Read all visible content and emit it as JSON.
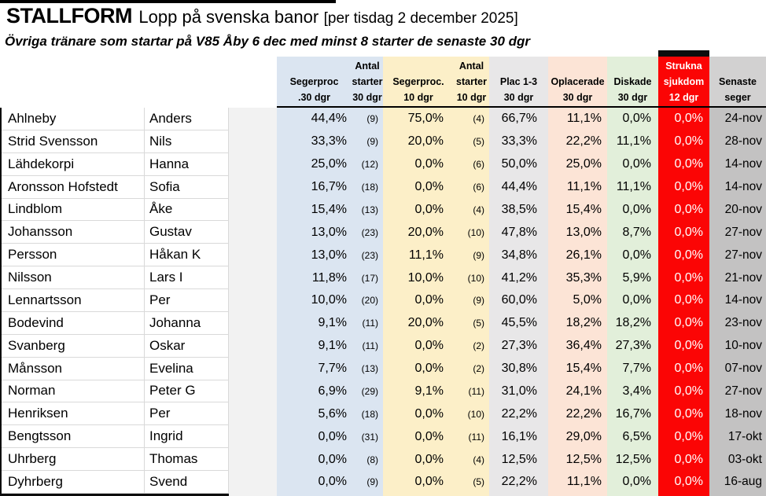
{
  "title": {
    "brand": "STALLFORM",
    "text": "Lopp på svenska banor",
    "date": "[per tisdag 2 december 2025]"
  },
  "subtitle": "Övriga tränare som startar på V85 Åby 6 dec med minst 8 starter de senaste 30 dgr",
  "colors": {
    "blue": "#dbe5f1",
    "yellow": "#fcefc8",
    "plac": "#e8e7e8",
    "oplacerade": "#fce4d6",
    "diskade": "#e2efda",
    "strukna": "#fb0505",
    "senaste_header": "#d2d1d1",
    "senaste_data": "#c3c2c2",
    "spacer": "#f2f2f2"
  },
  "columns": [
    {
      "id": "last_name",
      "lines": [
        "",
        "",
        ""
      ]
    },
    {
      "id": "first_name",
      "lines": [
        "",
        "",
        ""
      ]
    },
    {
      "id": "spacer",
      "lines": [
        "",
        "",
        ""
      ]
    },
    {
      "id": "segerproc_30",
      "lines": [
        "",
        "Segerproc",
        ".30 dgr"
      ]
    },
    {
      "id": "antal_starter_30",
      "lines": [
        "Antal",
        "starter",
        "30 dgr"
      ]
    },
    {
      "id": "segerproc_10",
      "lines": [
        "",
        "Segerproc.",
        "10 dgr"
      ]
    },
    {
      "id": "antal_starter_10",
      "lines": [
        "Antal",
        "starter",
        "10 dgr"
      ]
    },
    {
      "id": "plac_1_3",
      "lines": [
        "",
        "Plac 1-3",
        "30 dgr"
      ]
    },
    {
      "id": "oplacerade",
      "lines": [
        "",
        "Oplacerade",
        "30 dgr"
      ]
    },
    {
      "id": "diskade",
      "lines": [
        "",
        "Diskade",
        "30 dgr"
      ]
    },
    {
      "id": "strukna_sjukdom",
      "lines": [
        "Strukna",
        "sjukdom",
        "12 dgr"
      ]
    },
    {
      "id": "senaste_seger",
      "lines": [
        "",
        "Senaste",
        "seger"
      ]
    }
  ],
  "rows": [
    {
      "last": "Ahlneby",
      "first": "Anders",
      "s30": "44,4%",
      "n30": "(9)",
      "s10": "75,0%",
      "n10": "(4)",
      "p13": "66,7%",
      "opl": "11,1%",
      "dsk": "0,0%",
      "str": "0,0%",
      "sen": "24-nov"
    },
    {
      "last": "Strid Svensson",
      "first": "Nils",
      "s30": "33,3%",
      "n30": "(9)",
      "s10": "20,0%",
      "n10": "(5)",
      "p13": "33,3%",
      "opl": "22,2%",
      "dsk": "11,1%",
      "str": "0,0%",
      "sen": "28-nov"
    },
    {
      "last": "Lähdekorpi",
      "first": "Hanna",
      "s30": "25,0%",
      "n30": "(12)",
      "s10": "0,0%",
      "n10": "(6)",
      "p13": "50,0%",
      "opl": "25,0%",
      "dsk": "0,0%",
      "str": "0,0%",
      "sen": "14-nov"
    },
    {
      "last": "Aronsson Hofstedt",
      "first": "Sofia",
      "s30": "16,7%",
      "n30": "(18)",
      "s10": "0,0%",
      "n10": "(6)",
      "p13": "44,4%",
      "opl": "11,1%",
      "dsk": "11,1%",
      "str": "0,0%",
      "sen": "14-nov"
    },
    {
      "last": "Lindblom",
      "first": "Åke",
      "s30": "15,4%",
      "n30": "(13)",
      "s10": "0,0%",
      "n10": "(4)",
      "p13": "38,5%",
      "opl": "15,4%",
      "dsk": "0,0%",
      "str": "0,0%",
      "sen": "20-nov"
    },
    {
      "last": "Johansson",
      "first": "Gustav",
      "s30": "13,0%",
      "n30": "(23)",
      "s10": "20,0%",
      "n10": "(10)",
      "p13": "47,8%",
      "opl": "13,0%",
      "dsk": "8,7%",
      "str": "0,0%",
      "sen": "27-nov"
    },
    {
      "last": "Persson",
      "first": "Håkan K",
      "s30": "13,0%",
      "n30": "(23)",
      "s10": "11,1%",
      "n10": "(9)",
      "p13": "34,8%",
      "opl": "26,1%",
      "dsk": "0,0%",
      "str": "0,0%",
      "sen": "27-nov"
    },
    {
      "last": "Nilsson",
      "first": "Lars I",
      "s30": "11,8%",
      "n30": "(17)",
      "s10": "10,0%",
      "n10": "(10)",
      "p13": "41,2%",
      "opl": "35,3%",
      "dsk": "5,9%",
      "str": "0,0%",
      "sen": "21-nov"
    },
    {
      "last": "Lennartsson",
      "first": "Per",
      "s30": "10,0%",
      "n30": "(20)",
      "s10": "0,0%",
      "n10": "(9)",
      "p13": "60,0%",
      "opl": "5,0%",
      "dsk": "0,0%",
      "str": "0,0%",
      "sen": "14-nov"
    },
    {
      "last": "Bodevind",
      "first": "Johanna",
      "s30": "9,1%",
      "n30": "(11)",
      "s10": "20,0%",
      "n10": "(5)",
      "p13": "45,5%",
      "opl": "18,2%",
      "dsk": "18,2%",
      "str": "0,0%",
      "sen": "23-nov"
    },
    {
      "last": "Svanberg",
      "first": "Oskar",
      "s30": "9,1%",
      "n30": "(11)",
      "s10": "0,0%",
      "n10": "(2)",
      "p13": "27,3%",
      "opl": "36,4%",
      "dsk": "27,3%",
      "str": "0,0%",
      "sen": "10-nov"
    },
    {
      "last": "Månsson",
      "first": "Evelina",
      "s30": "7,7%",
      "n30": "(13)",
      "s10": "0,0%",
      "n10": "(2)",
      "p13": "30,8%",
      "opl": "15,4%",
      "dsk": "7,7%",
      "str": "0,0%",
      "sen": "07-nov"
    },
    {
      "last": "Norman",
      "first": "Peter G",
      "s30": "6,9%",
      "n30": "(29)",
      "s10": "9,1%",
      "n10": "(11)",
      "p13": "31,0%",
      "opl": "24,1%",
      "dsk": "3,4%",
      "str": "0,0%",
      "sen": "27-nov"
    },
    {
      "last": "Henriksen",
      "first": "Per",
      "s30": "5,6%",
      "n30": "(18)",
      "s10": "0,0%",
      "n10": "(10)",
      "p13": "22,2%",
      "opl": "22,2%",
      "dsk": "16,7%",
      "str": "0,0%",
      "sen": "18-nov"
    },
    {
      "last": "Bengtsson",
      "first": "Ingrid",
      "s30": "0,0%",
      "n30": "(31)",
      "s10": "0,0%",
      "n10": "(11)",
      "p13": "16,1%",
      "opl": "29,0%",
      "dsk": "6,5%",
      "str": "0,0%",
      "sen": "17-okt"
    },
    {
      "last": "Uhrberg",
      "first": "Thomas",
      "s30": "0,0%",
      "n30": "(8)",
      "s10": "0,0%",
      "n10": "(4)",
      "p13": "12,5%",
      "opl": "12,5%",
      "dsk": "12,5%",
      "str": "0,0%",
      "sen": "03-okt"
    },
    {
      "last": "Dyhrberg",
      "first": "Svend",
      "s30": "0,0%",
      "n30": "(9)",
      "s10": "0,0%",
      "n10": "(5)",
      "p13": "22,2%",
      "opl": "11,1%",
      "dsk": "0,0%",
      "str": "0,0%",
      "sen": "16-aug"
    }
  ]
}
